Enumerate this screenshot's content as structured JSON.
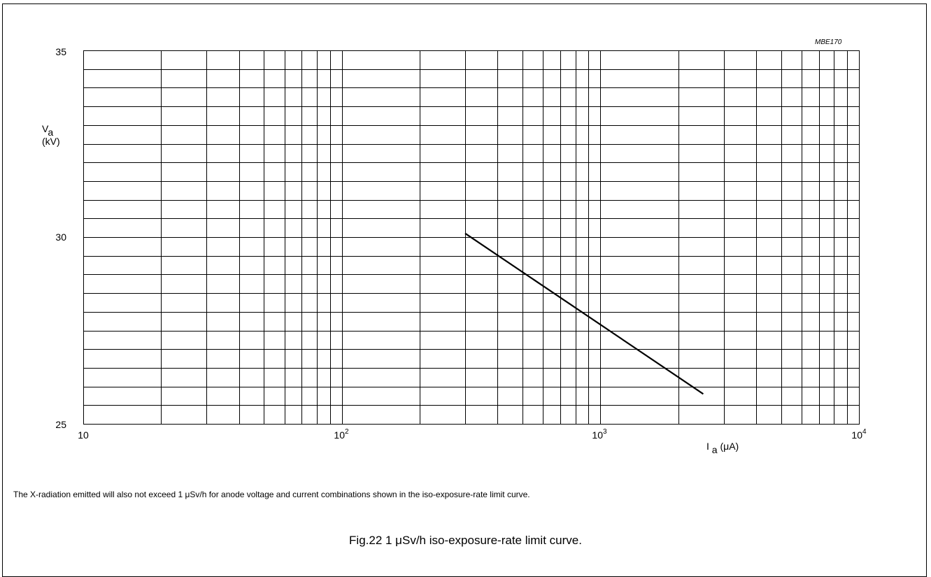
{
  "figure_code": "MBE170",
  "note": "The X-radiation emitted will also not exceed 1 μSv/h for anode voltage and current combinations shown in the iso-exposure-rate limit curve.",
  "caption": "Fig.22  1 μSv/h iso-exposure-rate limit curve.",
  "chart_data": {
    "type": "line",
    "x_scale": "log",
    "xlim": [
      10,
      10000
    ],
    "ylim": [
      25,
      35
    ],
    "ylabel_main": "V",
    "ylabel_sub": "a",
    "ylabel_unit": "(kV)",
    "xlabel_main": "I",
    "xlabel_sub": "a",
    "xlabel_unit": "(μA)",
    "y_ticks": [
      "35",
      "30",
      "25"
    ],
    "x_ticks": [
      {
        "base": "10",
        "exp": ""
      },
      {
        "base": "10",
        "exp": "2"
      },
      {
        "base": "10",
        "exp": "3"
      },
      {
        "base": "10",
        "exp": "4"
      }
    ],
    "grid": true,
    "series": [
      {
        "x": [
          300,
          2500
        ],
        "y": [
          30.1,
          25.8
        ]
      }
    ]
  }
}
